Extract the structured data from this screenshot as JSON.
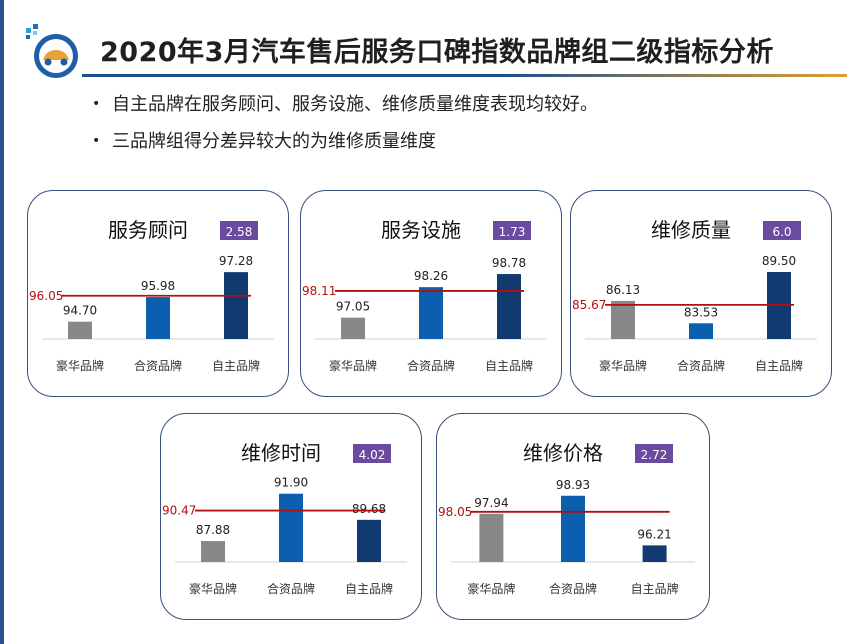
{
  "page": {
    "title": "2020年3月汽车售后服务口碑指数品牌组二级指标分析",
    "bullets": [
      "自主品牌在服务顾问、服务设施、维修质量维度表现均较好。",
      "三品牌组得分差异较大的为维修质量维度"
    ]
  },
  "colors": {
    "luxury": "#888888",
    "joint": "#0c5fae",
    "domestic": "#103a70",
    "avg_line": "#b01010",
    "badge": "#6a4ba0",
    "panel_border": "#3b4f7c"
  },
  "chart_data": [
    {
      "type": "bar",
      "title": "服务顾问",
      "badge": "2.58",
      "categories": [
        "豪华品牌",
        "合资品牌",
        "自主品牌"
      ],
      "values": [
        94.7,
        95.98,
        97.28
      ],
      "value_labels": [
        "94.70",
        "95.98",
        "97.28"
      ],
      "average": 96.05,
      "average_label": "96.05",
      "ylim": [
        93.8,
        97.6
      ]
    },
    {
      "type": "bar",
      "title": "服务设施",
      "badge": "1.73",
      "categories": [
        "豪华品牌",
        "合资品牌",
        "自主品牌"
      ],
      "values": [
        97.05,
        98.26,
        98.78
      ],
      "value_labels": [
        "97.05",
        "98.26",
        "98.78"
      ],
      "average": 98.11,
      "average_label": "98.11",
      "ylim": [
        96.2,
        99.1
      ]
    },
    {
      "type": "bar",
      "title": "维修质量",
      "badge": "6.0",
      "categories": [
        "豪华品牌",
        "合资品牌",
        "自主品牌"
      ],
      "values": [
        86.13,
        83.53,
        89.5
      ],
      "value_labels": [
        "86.13",
        "83.53",
        "89.50"
      ],
      "average": 85.67,
      "average_label": "85.67",
      "ylim": [
        81.7,
        90.2
      ]
    },
    {
      "type": "bar",
      "title": "维修时间",
      "badge": "4.02",
      "categories": [
        "豪华品牌",
        "合资品牌",
        "自主品牌"
      ],
      "values": [
        87.88,
        91.9,
        89.68
      ],
      "value_labels": [
        "87.88",
        "91.90",
        "89.68"
      ],
      "average": 90.47,
      "average_label": "90.47",
      "ylim": [
        86.1,
        92.3
      ]
    },
    {
      "type": "bar",
      "title": "维修价格",
      "badge": "2.72",
      "categories": [
        "豪华品牌",
        "合资品牌",
        "自主品牌"
      ],
      "values": [
        97.94,
        98.93,
        96.21
      ],
      "value_labels": [
        "97.94",
        "98.93",
        "96.21"
      ],
      "average": 98.05,
      "average_label": "98.05",
      "ylim": [
        95.3,
        99.3
      ]
    }
  ]
}
